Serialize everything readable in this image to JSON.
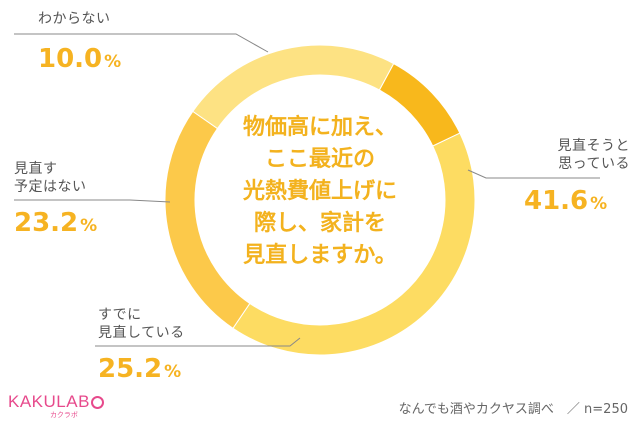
{
  "chart_data": {
    "type": "pie",
    "style": "donut",
    "start_angle_deg": -25.6,
    "direction": "clockwise",
    "title_lines": [
      "物価高に加え、",
      "ここ最近の",
      "光熱費値上げに",
      "際し、家計を",
      "見直しますか。"
    ],
    "slices": [
      {
        "label_lines": [
          "見直そうと",
          "思っている"
        ],
        "value": 41.6,
        "color": "#fddc62"
      },
      {
        "label_lines": [
          "すでに",
          "見直している"
        ],
        "value": 25.2,
        "color": "#fcc94a"
      },
      {
        "label_lines": [
          "見直す",
          "予定はない"
        ],
        "value": 23.2,
        "color": "#fde283"
      },
      {
        "label_lines": [
          "わからない"
        ],
        "value": 10.0,
        "color": "#f8b81c"
      }
    ],
    "value_unit": "%"
  },
  "footer": "なんでも酒やカクヤス調べ　／ n=250",
  "logo": {
    "main_left": "KAKULAB",
    "sub": "カクラボ"
  },
  "colors": {
    "accent": "#f6b322",
    "leader_line": "#888888",
    "logo": "#e74a8c"
  }
}
